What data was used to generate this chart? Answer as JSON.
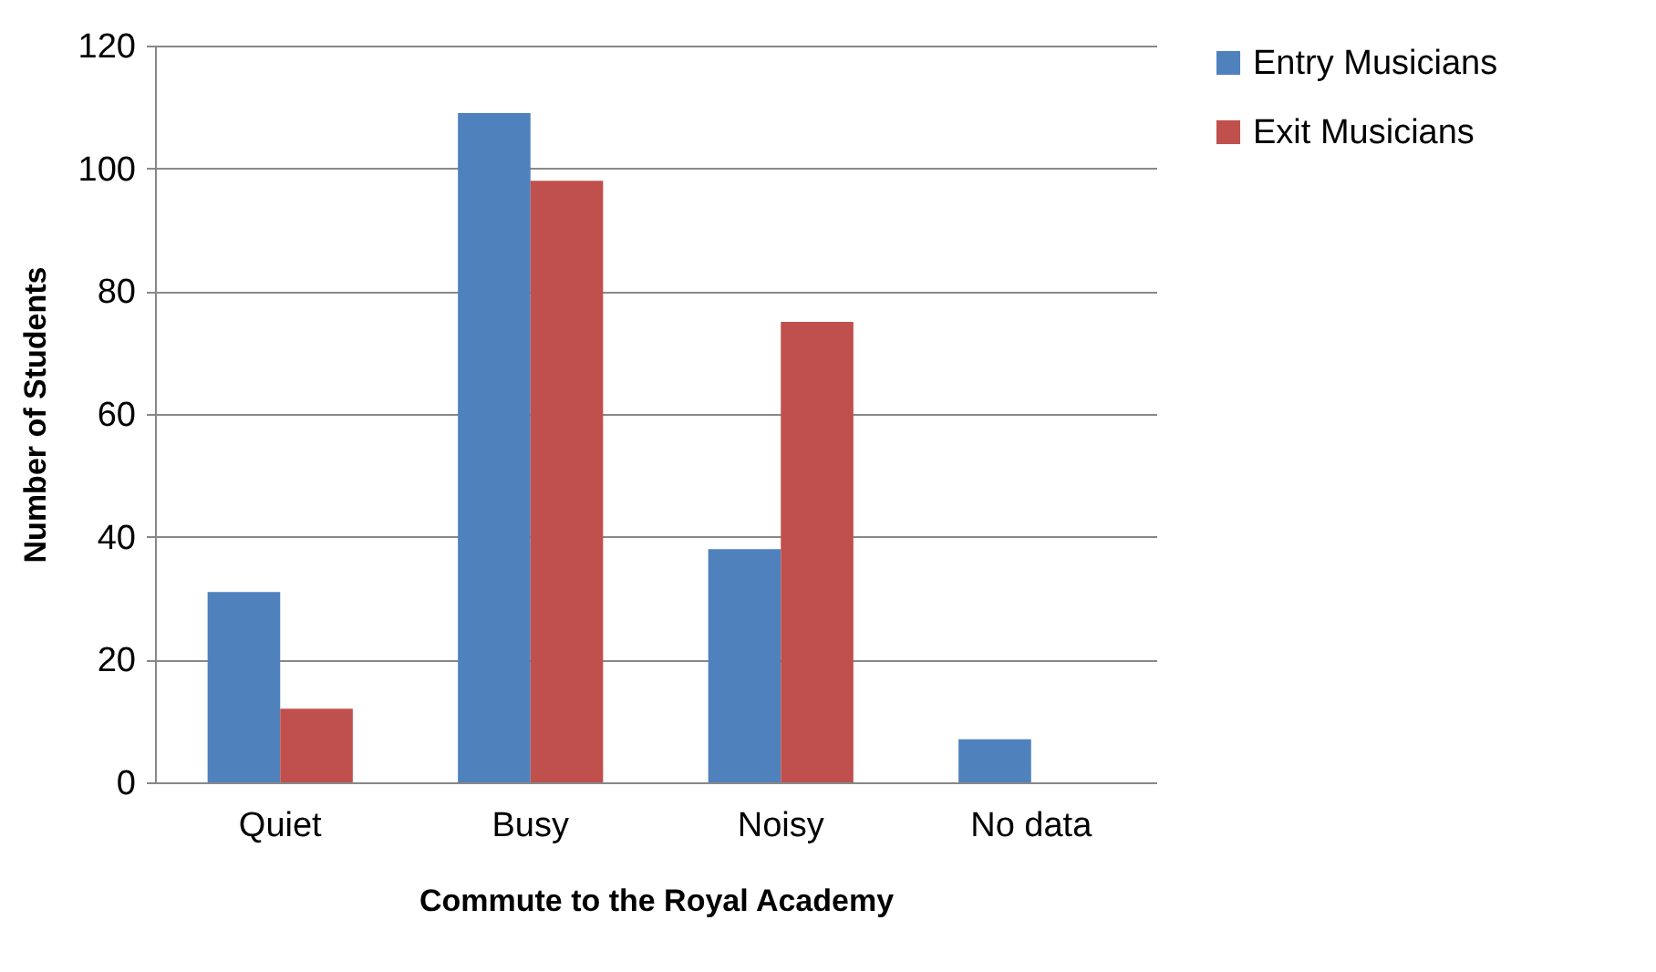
{
  "chart_data": {
    "type": "bar",
    "xlabel": "Commute to the Royal Academy",
    "ylabel": "Number of Students",
    "categories": [
      "Quiet",
      "Busy",
      "Noisy",
      "No data"
    ],
    "series": [
      {
        "name": "Entry Musicians",
        "color": "#4f81bd",
        "values": [
          31,
          109,
          38,
          7
        ]
      },
      {
        "name": "Exit Musicians",
        "color": "#c0504d",
        "values": [
          12,
          98,
          75,
          0
        ]
      }
    ],
    "ylim": [
      0,
      120
    ],
    "yticks": [
      0,
      20,
      40,
      60,
      80,
      100,
      120
    ],
    "grid": "y",
    "legend": "right"
  }
}
